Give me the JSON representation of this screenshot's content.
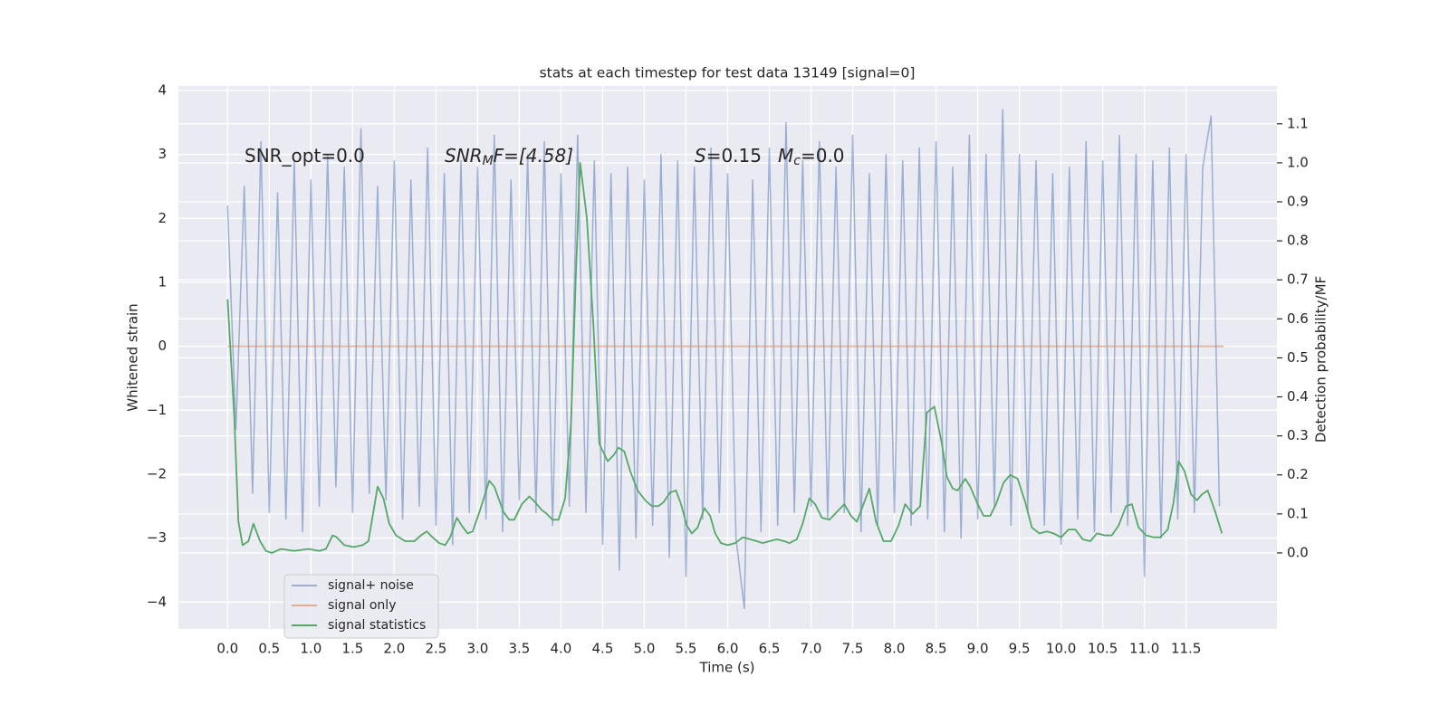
{
  "chart_data": {
    "type": "line",
    "title": "stats at each timestep for test data 13149 [signal=0]",
    "xlabel": "Time (s)",
    "ylabel": "Whitened strain",
    "y2label": "Detection probability/MF",
    "annotations": [
      {
        "text": "SNR_opt=0.0"
      },
      {
        "text": "SNR",
        "sub": "M",
        "after": "F=[4.58]",
        "italic": true
      },
      {
        "text": "S",
        "after": "=0.15",
        "italic": true
      },
      {
        "text": "M",
        "sub": "c",
        "after": "=0.0",
        "italic": true
      }
    ],
    "xlim": [
      -0.59,
      12.59
    ],
    "ylim": [
      -4.42,
      4.07
    ],
    "y2lim": [
      -0.195,
      1.197
    ],
    "xticks": [
      {
        "value": 0,
        "label": "0.0"
      },
      0.5,
      {
        "value": 1,
        "label": "1.0"
      },
      1.5,
      {
        "value": 2,
        "label": "2.0"
      },
      2.5,
      {
        "value": 3,
        "label": "3.0"
      },
      3.5,
      {
        "value": 4,
        "label": "4.0"
      },
      4.5,
      {
        "value": 5,
        "label": "5.0"
      },
      5.5,
      {
        "value": 6,
        "label": "6.0"
      },
      6.5,
      {
        "value": 7,
        "label": "7.0"
      },
      7.5,
      {
        "value": 8,
        "label": "8.0"
      },
      8.5,
      {
        "value": 9,
        "label": "9.0"
      },
      9.5,
      {
        "value": 10,
        "label": "10.0"
      },
      10.5,
      {
        "value": 11,
        "label": "11.0"
      },
      11.5
    ],
    "yticks": [
      {
        "value": -4,
        "label": "−4"
      },
      {
        "value": -3,
        "label": "−3"
      },
      {
        "value": -2,
        "label": "−2"
      },
      {
        "value": -1,
        "label": "−1"
      },
      0,
      1,
      2,
      3,
      4
    ],
    "y2ticks": [
      {
        "value": 0,
        "label": "0.0"
      },
      0.1,
      0.2,
      0.3,
      0.4,
      0.5,
      0.6,
      0.7,
      0.8,
      0.9,
      {
        "value": 1,
        "label": "1.0"
      },
      1.1
    ],
    "grid": true,
    "legend": "lower left",
    "series": [
      {
        "name": "signal+ noise",
        "color": "#4c72b0",
        "opacity": 0.5,
        "x": [
          0,
          0.1,
          0.2,
          0.3,
          0.4,
          0.5,
          0.6,
          0.7,
          0.8,
          0.9,
          1,
          1.1,
          1.2,
          1.3,
          1.4,
          1.5,
          1.6,
          1.7,
          1.8,
          1.9,
          2,
          2.1,
          2.2,
          2.3,
          2.4,
          2.5,
          2.6,
          2.7,
          2.8,
          2.9,
          3,
          3.1,
          3.2,
          3.3,
          3.4,
          3.5,
          3.6,
          3.7,
          3.8,
          3.9,
          4,
          4.1,
          4.2,
          4.3,
          4.4,
          4.5,
          4.6,
          4.7,
          4.8,
          4.9,
          5,
          5.1,
          5.2,
          5.3,
          5.4,
          5.5,
          5.6,
          5.7,
          5.8,
          5.9,
          6,
          6.1,
          6.2,
          6.3,
          6.4,
          6.5,
          6.6,
          6.7,
          6.8,
          6.9,
          7,
          7.1,
          7.2,
          7.3,
          7.4,
          7.5,
          7.6,
          7.7,
          7.8,
          7.9,
          8,
          8.1,
          8.2,
          8.3,
          8.4,
          8.5,
          8.6,
          8.7,
          8.8,
          8.9,
          9,
          9.1,
          9.2,
          9.3,
          9.4,
          9.5,
          9.6,
          9.7,
          9.8,
          9.9,
          10,
          10.1,
          10.2,
          10.3,
          10.4,
          10.5,
          10.6,
          10.7,
          10.8,
          10.9,
          11,
          11.1,
          11.2,
          11.3,
          11.4,
          11.5,
          11.6,
          11.7,
          11.8,
          11.9
        ],
        "values": [
          2.2,
          -1.3,
          2.5,
          -2.3,
          3.2,
          -2.6,
          2.4,
          -2.7,
          2.9,
          -2.9,
          2.6,
          -2.5,
          3.0,
          -2.2,
          2.8,
          -2.6,
          3.4,
          -2.3,
          2.5,
          -2.4,
          2.9,
          -2.7,
          2.6,
          -2.5,
          3.1,
          -2.8,
          2.7,
          -3.1,
          2.9,
          -2.6,
          2.8,
          -2.7,
          3.3,
          -2.9,
          2.6,
          -2.4,
          3.0,
          -2.6,
          3.2,
          -2.8,
          2.7,
          -2.5,
          3.3,
          -2.6,
          2.9,
          -3.1,
          2.7,
          -3.5,
          2.8,
          -3.0,
          2.6,
          -2.8,
          3.0,
          -3.3,
          2.9,
          -3.6,
          2.8,
          -2.7,
          3.1,
          -2.6,
          2.7,
          -3.0,
          -4.1,
          2.6,
          -2.9,
          3.1,
          -2.8,
          3.5,
          -2.6,
          2.9,
          -2.5,
          3.2,
          -2.7,
          2.8,
          -2.6,
          3.3,
          -2.9,
          2.7,
          -2.8,
          3.0,
          -2.6,
          2.9,
          -2.8,
          3.1,
          -2.7,
          3.2,
          -2.9,
          2.8,
          -3.0,
          3.3,
          -2.7,
          3.0,
          -2.5,
          3.7,
          -2.8,
          3.0,
          -2.6,
          2.9,
          -2.8,
          2.7,
          -3.1,
          2.8,
          -2.7,
          3.2,
          -2.9,
          2.9,
          -2.6,
          3.3,
          -2.8,
          3.0,
          -3.6,
          2.9,
          -3.0,
          3.1,
          -2.7,
          3.0,
          -2.6,
          2.8,
          3.6,
          -2.5
        ]
      },
      {
        "name": "signal only",
        "color": "#dd8452",
        "opacity": 0.6,
        "x": [
          0,
          11.95
        ],
        "values": [
          0,
          0
        ]
      },
      {
        "name": "signal statistics",
        "color": "#55a868",
        "opacity": 1,
        "axis": "y2",
        "x": [
          0,
          0.08,
          0.13,
          0.18,
          0.25,
          0.31,
          0.39,
          0.46,
          0.53,
          0.64,
          0.8,
          0.97,
          1.1,
          1.18,
          1.26,
          1.31,
          1.4,
          1.51,
          1.62,
          1.69,
          1.8,
          1.87,
          1.94,
          2.02,
          2.13,
          2.24,
          2.32,
          2.39,
          2.46,
          2.54,
          2.61,
          2.67,
          2.75,
          2.81,
          2.88,
          2.94,
          3.03,
          3.14,
          3.2,
          3.31,
          3.38,
          3.44,
          3.53,
          3.62,
          3.69,
          3.77,
          3.83,
          3.9,
          3.97,
          4.05,
          4.12,
          4.18,
          4.23,
          4.31,
          4.39,
          4.46,
          4.56,
          4.63,
          4.69,
          4.76,
          4.83,
          4.92,
          5.01,
          5.09,
          5.17,
          5.23,
          5.31,
          5.38,
          5.44,
          5.51,
          5.57,
          5.64,
          5.72,
          5.79,
          5.85,
          5.92,
          6,
          6.09,
          6.18,
          6.27,
          6.35,
          6.42,
          6.5,
          6.59,
          6.68,
          6.74,
          6.83,
          6.9,
          6.98,
          7.05,
          7.13,
          7.22,
          7.31,
          7.4,
          7.48,
          7.55,
          7.63,
          7.7,
          7.78,
          7.87,
          7.96,
          8.05,
          8.13,
          8.22,
          8.31,
          8.39,
          8.48,
          8.57,
          8.63,
          8.7,
          8.76,
          8.85,
          8.91,
          9,
          9.07,
          9.15,
          9.22,
          9.31,
          9.39,
          9.48,
          9.57,
          9.65,
          9.74,
          9.83,
          9.91,
          10,
          10.09,
          10.17,
          10.26,
          10.35,
          10.43,
          10.52,
          10.61,
          10.69,
          10.78,
          10.85,
          10.93,
          11.02,
          11.11,
          11.19,
          11.28,
          11.35,
          11.41,
          11.48,
          11.56,
          11.63,
          11.69,
          11.76,
          11.85,
          11.93
        ],
        "values": [
          0.65,
          0.35,
          0.08,
          0.02,
          0.03,
          0.075,
          0.03,
          0.005,
          0,
          0.01,
          0.005,
          0.01,
          0.005,
          0.01,
          0.045,
          0.04,
          0.02,
          0.015,
          0.02,
          0.03,
          0.17,
          0.14,
          0.075,
          0.045,
          0.03,
          0.03,
          0.045,
          0.055,
          0.04,
          0.025,
          0.02,
          0.04,
          0.09,
          0.07,
          0.05,
          0.055,
          0.11,
          0.185,
          0.17,
          0.105,
          0.085,
          0.085,
          0.125,
          0.145,
          0.13,
          0.11,
          0.1,
          0.085,
          0.085,
          0.14,
          0.33,
          0.72,
          1.0,
          0.86,
          0.58,
          0.28,
          0.235,
          0.25,
          0.27,
          0.26,
          0.21,
          0.16,
          0.135,
          0.12,
          0.12,
          0.13,
          0.155,
          0.16,
          0.125,
          0.07,
          0.05,
          0.065,
          0.115,
          0.095,
          0.05,
          0.025,
          0.02,
          0.025,
          0.04,
          0.035,
          0.03,
          0.025,
          0.03,
          0.035,
          0.03,
          0.025,
          0.035,
          0.075,
          0.14,
          0.125,
          0.09,
          0.085,
          0.105,
          0.125,
          0.095,
          0.08,
          0.125,
          0.165,
          0.08,
          0.03,
          0.03,
          0.07,
          0.125,
          0.1,
          0.12,
          0.36,
          0.375,
          0.28,
          0.195,
          0.165,
          0.16,
          0.19,
          0.17,
          0.125,
          0.095,
          0.095,
          0.125,
          0.18,
          0.2,
          0.19,
          0.13,
          0.065,
          0.05,
          0.055,
          0.05,
          0.04,
          0.06,
          0.06,
          0.035,
          0.03,
          0.05,
          0.045,
          0.045,
          0.07,
          0.12,
          0.125,
          0.065,
          0.045,
          0.04,
          0.04,
          0.06,
          0.13,
          0.235,
          0.21,
          0.15,
          0.135,
          0.15,
          0.16,
          0.105,
          0.05
        ]
      }
    ]
  }
}
